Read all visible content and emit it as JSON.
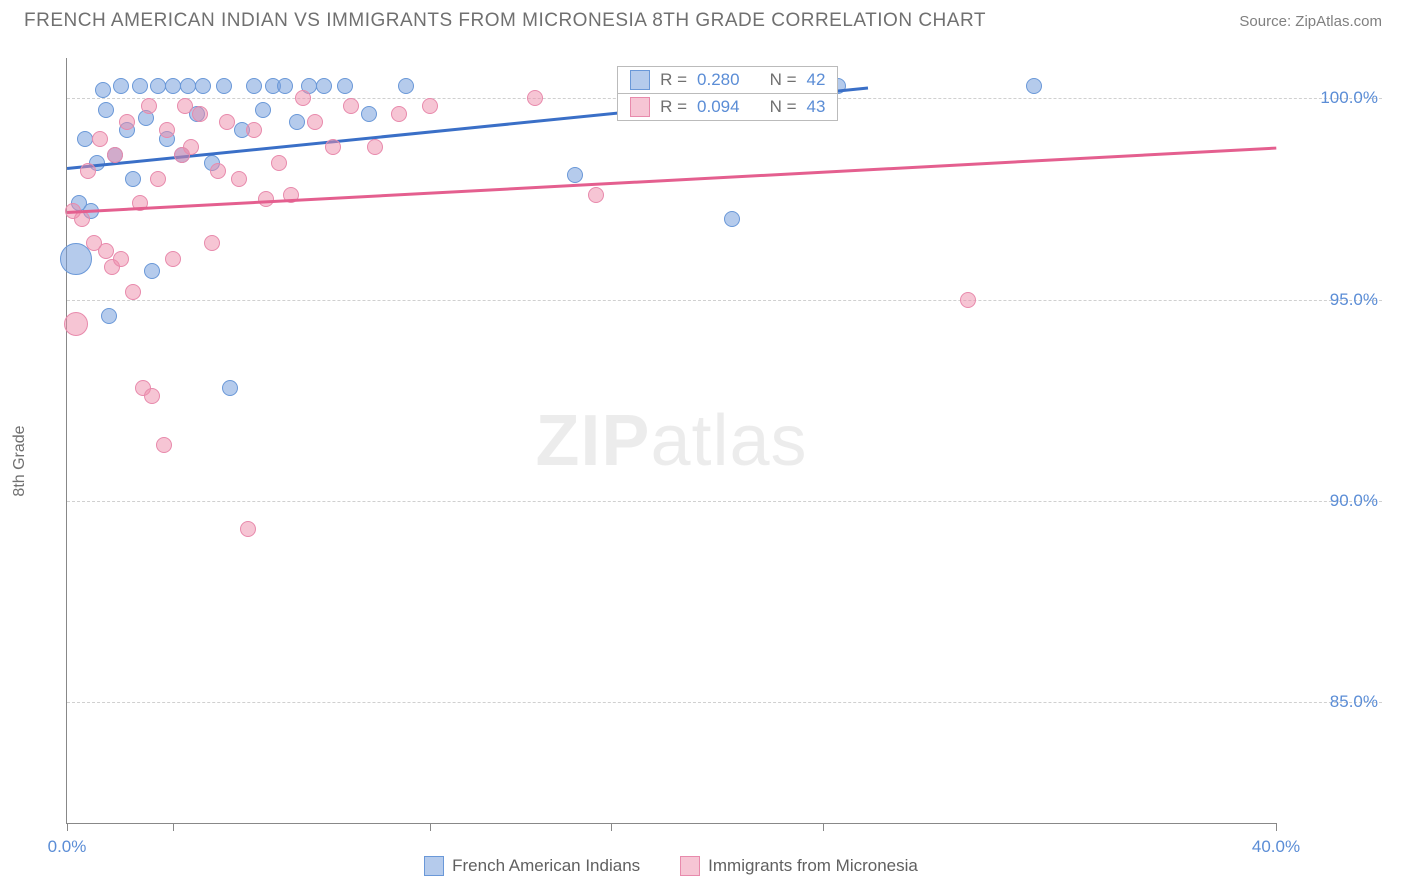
{
  "title": "FRENCH AMERICAN INDIAN VS IMMIGRANTS FROM MICRONESIA 8TH GRADE CORRELATION CHART",
  "source_label": "Source: ",
  "source_name": "ZipAtlas.com",
  "ylabel": "8th Grade",
  "watermark_a": "ZIP",
  "watermark_b": "atlas",
  "chart": {
    "type": "scatter",
    "xlim": [
      0,
      40
    ],
    "ylim": [
      82,
      101
    ],
    "xtick_positions": [
      0,
      3.5,
      12,
      18,
      25,
      40
    ],
    "xtick_labels": [
      "0.0%",
      "",
      "",
      "",
      "",
      "40.0%"
    ],
    "ytick_positions": [
      85,
      90,
      95,
      100
    ],
    "ytick_labels": [
      "85.0%",
      "90.0%",
      "95.0%",
      "100.0%"
    ],
    "background_color": "#ffffff",
    "grid_color": "#d0d0d0",
    "axis_color": "#888888",
    "tick_label_color": "#5b8dd6",
    "tick_fontsize": 17
  },
  "series": [
    {
      "name": "French American Indians",
      "color_fill": "rgba(120,160,220,0.55)",
      "color_stroke": "#6a98d8",
      "trend_color": "#3a6fc7",
      "R": "0.280",
      "N": "42",
      "trend": {
        "x1": 0,
        "y1": 98.3,
        "x2": 26.5,
        "y2": 100.3
      },
      "points": [
        {
          "x": 0.3,
          "y": 96.0,
          "r": 16
        },
        {
          "x": 0.4,
          "y": 97.4,
          "r": 8
        },
        {
          "x": 0.6,
          "y": 99.0,
          "r": 8
        },
        {
          "x": 0.8,
          "y": 97.2,
          "r": 8
        },
        {
          "x": 1.0,
          "y": 98.4,
          "r": 8
        },
        {
          "x": 1.2,
          "y": 100.2,
          "r": 8
        },
        {
          "x": 1.3,
          "y": 99.7,
          "r": 8
        },
        {
          "x": 1.4,
          "y": 94.6,
          "r": 8
        },
        {
          "x": 1.6,
          "y": 98.6,
          "r": 8
        },
        {
          "x": 1.8,
          "y": 100.3,
          "r": 8
        },
        {
          "x": 2.0,
          "y": 99.2,
          "r": 8
        },
        {
          "x": 2.2,
          "y": 98.0,
          "r": 8
        },
        {
          "x": 2.4,
          "y": 100.3,
          "r": 8
        },
        {
          "x": 2.6,
          "y": 99.5,
          "r": 8
        },
        {
          "x": 2.8,
          "y": 95.7,
          "r": 8
        },
        {
          "x": 3.0,
          "y": 100.3,
          "r": 8
        },
        {
          "x": 3.3,
          "y": 99.0,
          "r": 8
        },
        {
          "x": 3.5,
          "y": 100.3,
          "r": 8
        },
        {
          "x": 3.8,
          "y": 98.6,
          "r": 8
        },
        {
          "x": 4.0,
          "y": 100.3,
          "r": 8
        },
        {
          "x": 4.3,
          "y": 99.6,
          "r": 8
        },
        {
          "x": 4.5,
          "y": 100.3,
          "r": 8
        },
        {
          "x": 4.8,
          "y": 98.4,
          "r": 8
        },
        {
          "x": 5.2,
          "y": 100.3,
          "r": 8
        },
        {
          "x": 5.4,
          "y": 92.8,
          "r": 8
        },
        {
          "x": 5.8,
          "y": 99.2,
          "r": 8
        },
        {
          "x": 6.2,
          "y": 100.3,
          "r": 8
        },
        {
          "x": 6.5,
          "y": 99.7,
          "r": 8
        },
        {
          "x": 6.8,
          "y": 100.3,
          "r": 8
        },
        {
          "x": 7.2,
          "y": 100.3,
          "r": 8
        },
        {
          "x": 7.6,
          "y": 99.4,
          "r": 8
        },
        {
          "x": 8.0,
          "y": 100.3,
          "r": 8
        },
        {
          "x": 8.5,
          "y": 100.3,
          "r": 8
        },
        {
          "x": 9.2,
          "y": 100.3,
          "r": 8
        },
        {
          "x": 10.0,
          "y": 99.6,
          "r": 8
        },
        {
          "x": 11.2,
          "y": 100.3,
          "r": 8
        },
        {
          "x": 16.8,
          "y": 98.1,
          "r": 8
        },
        {
          "x": 19.8,
          "y": 100.3,
          "r": 8
        },
        {
          "x": 22.0,
          "y": 97.0,
          "r": 8
        },
        {
          "x": 23.5,
          "y": 100.3,
          "r": 8
        },
        {
          "x": 25.5,
          "y": 100.3,
          "r": 8
        },
        {
          "x": 32.0,
          "y": 100.3,
          "r": 8
        }
      ]
    },
    {
      "name": "Immigrants from Micronesia",
      "color_fill": "rgba(238,140,170,0.50)",
      "color_stroke": "#e88aac",
      "trend_color": "#e45f8f",
      "R": "0.094",
      "N": "43",
      "trend": {
        "x1": 0,
        "y1": 97.2,
        "x2": 40,
        "y2": 98.8
      },
      "points": [
        {
          "x": 0.2,
          "y": 97.2,
          "r": 8
        },
        {
          "x": 0.3,
          "y": 94.4,
          "r": 12
        },
        {
          "x": 0.5,
          "y": 97.0,
          "r": 8
        },
        {
          "x": 0.7,
          "y": 98.2,
          "r": 8
        },
        {
          "x": 0.9,
          "y": 96.4,
          "r": 8
        },
        {
          "x": 1.1,
          "y": 99.0,
          "r": 8
        },
        {
          "x": 1.3,
          "y": 96.2,
          "r": 8
        },
        {
          "x": 1.5,
          "y": 95.8,
          "r": 8
        },
        {
          "x": 1.6,
          "y": 98.6,
          "r": 8
        },
        {
          "x": 1.8,
          "y": 96.0,
          "r": 8
        },
        {
          "x": 2.0,
          "y": 99.4,
          "r": 8
        },
        {
          "x": 2.2,
          "y": 95.2,
          "r": 8
        },
        {
          "x": 2.4,
          "y": 97.4,
          "r": 8
        },
        {
          "x": 2.5,
          "y": 92.8,
          "r": 8
        },
        {
          "x": 2.7,
          "y": 99.8,
          "r": 8
        },
        {
          "x": 2.8,
          "y": 92.6,
          "r": 8
        },
        {
          "x": 3.0,
          "y": 98.0,
          "r": 8
        },
        {
          "x": 3.2,
          "y": 91.4,
          "r": 8
        },
        {
          "x": 3.3,
          "y": 99.2,
          "r": 8
        },
        {
          "x": 3.5,
          "y": 96.0,
          "r": 8
        },
        {
          "x": 3.8,
          "y": 98.6,
          "r": 8
        },
        {
          "x": 3.9,
          "y": 99.8,
          "r": 8
        },
        {
          "x": 4.1,
          "y": 98.8,
          "r": 8
        },
        {
          "x": 4.4,
          "y": 99.6,
          "r": 8
        },
        {
          "x": 4.8,
          "y": 96.4,
          "r": 8
        },
        {
          "x": 5.0,
          "y": 98.2,
          "r": 8
        },
        {
          "x": 5.3,
          "y": 99.4,
          "r": 8
        },
        {
          "x": 5.7,
          "y": 98.0,
          "r": 8
        },
        {
          "x": 6.0,
          "y": 89.3,
          "r": 8
        },
        {
          "x": 6.2,
          "y": 99.2,
          "r": 8
        },
        {
          "x": 6.6,
          "y": 97.5,
          "r": 8
        },
        {
          "x": 7.0,
          "y": 98.4,
          "r": 8
        },
        {
          "x": 7.4,
          "y": 97.6,
          "r": 8
        },
        {
          "x": 7.8,
          "y": 100.0,
          "r": 8
        },
        {
          "x": 8.2,
          "y": 99.4,
          "r": 8
        },
        {
          "x": 8.8,
          "y": 98.8,
          "r": 8
        },
        {
          "x": 9.4,
          "y": 99.8,
          "r": 8
        },
        {
          "x": 10.2,
          "y": 98.8,
          "r": 8
        },
        {
          "x": 11.0,
          "y": 99.6,
          "r": 8
        },
        {
          "x": 12.0,
          "y": 99.8,
          "r": 8
        },
        {
          "x": 15.5,
          "y": 100.0,
          "r": 8
        },
        {
          "x": 17.5,
          "y": 97.6,
          "r": 8
        },
        {
          "x": 29.8,
          "y": 95.0,
          "r": 8
        }
      ]
    }
  ],
  "stats_box": {
    "labels": {
      "R": "R =",
      "N": "N ="
    }
  },
  "bottom_legend": [
    {
      "swatch_fill": "rgba(120,160,220,0.55)",
      "swatch_stroke": "#6a98d8",
      "label_ref": 0
    },
    {
      "swatch_fill": "rgba(238,140,170,0.50)",
      "swatch_stroke": "#e88aac",
      "label_ref": 1
    }
  ]
}
